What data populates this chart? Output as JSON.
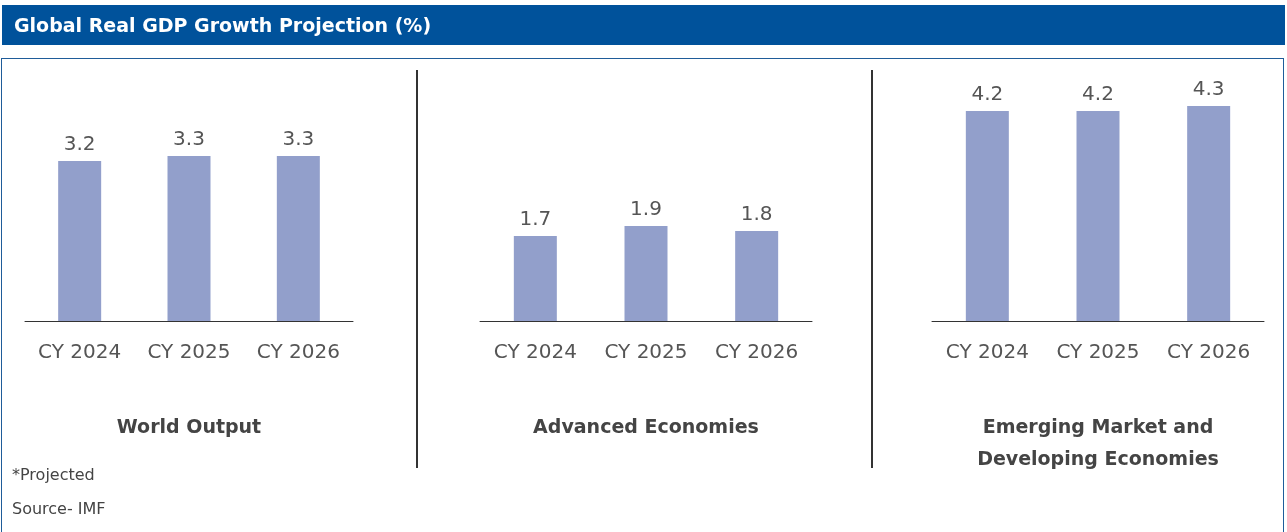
{
  "chart_data": [
    {
      "type": "bar",
      "title": "Global Real GDP Growth Projection (%)",
      "xlabel": "World Output",
      "categories": [
        "CY 2024",
        "CY 2025",
        "CY 2026"
      ],
      "values": [
        3.2,
        3.3,
        3.3
      ],
      "color": "#929fcb",
      "data_labels": true,
      "annotations": [
        "*Projected",
        "Source- IMF"
      ]
    },
    {
      "type": "bar",
      "xlabel": "Advanced Economies",
      "categories": [
        "CY 2024",
        "CY 2025",
        "CY 2026"
      ],
      "values": [
        1.7,
        1.9,
        1.8
      ],
      "color": "#929fcb",
      "data_labels": true
    },
    {
      "type": "bar",
      "xlabel": "Emerging Market and Developing Economies",
      "categories": [
        "CY 2024",
        "CY 2025",
        "CY 2026"
      ],
      "values": [
        4.2,
        4.2,
        4.3
      ],
      "color": "#929fcb",
      "data_labels": true
    }
  ]
}
